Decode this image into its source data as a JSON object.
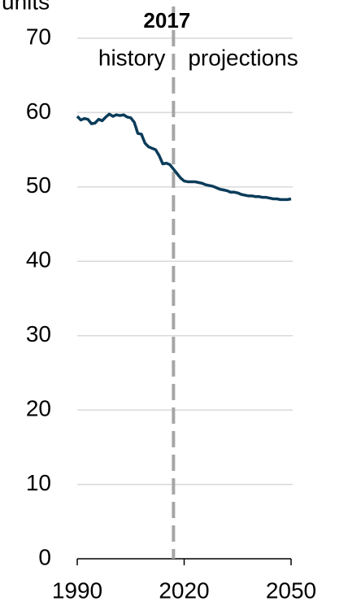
{
  "chart_data": {
    "type": "line",
    "y_label": "units",
    "vline": {
      "x": 2017,
      "label": "2017"
    },
    "annotations": [
      "history",
      "projections"
    ],
    "x": [
      1990,
      1991,
      1992,
      1993,
      1994,
      1995,
      1996,
      1997,
      1998,
      1999,
      2000,
      2001,
      2002,
      2003,
      2004,
      2005,
      2006,
      2007,
      2008,
      2009,
      2010,
      2011,
      2012,
      2013,
      2014,
      2015,
      2016,
      2017,
      2018,
      2019,
      2020,
      2021,
      2022,
      2023,
      2024,
      2025,
      2026,
      2027,
      2028,
      2029,
      2030,
      2031,
      2032,
      2033,
      2034,
      2035,
      2036,
      2037,
      2038,
      2039,
      2040,
      2041,
      2042,
      2043,
      2044,
      2045,
      2046,
      2047,
      2048,
      2049,
      2050
    ],
    "series": [
      {
        "color": "#0b3c5a",
        "values": [
          59.5,
          59.0,
          59.2,
          59.1,
          58.5,
          58.6,
          59.1,
          58.9,
          59.4,
          59.8,
          59.5,
          59.7,
          59.6,
          59.7,
          59.4,
          59.3,
          58.7,
          57.2,
          57.1,
          55.9,
          55.4,
          55.2,
          55.0,
          54.2,
          53.1,
          53.2,
          53.0,
          52.4,
          51.8,
          51.2,
          50.8,
          50.7,
          50.7,
          50.7,
          50.6,
          50.5,
          50.3,
          50.2,
          50.1,
          49.9,
          49.7,
          49.6,
          49.5,
          49.3,
          49.3,
          49.2,
          49.0,
          48.9,
          48.8,
          48.8,
          48.7,
          48.7,
          48.6,
          48.6,
          48.5,
          48.4,
          48.4,
          48.3,
          48.3,
          48.3,
          48.4
        ]
      }
    ],
    "xlim": [
      1990,
      2050
    ],
    "xticks": [
      1990,
      2020,
      2050
    ],
    "ylim": [
      0,
      70
    ],
    "yticks": [
      0,
      10,
      20,
      30,
      40,
      50,
      60,
      70
    ],
    "grid": true
  }
}
